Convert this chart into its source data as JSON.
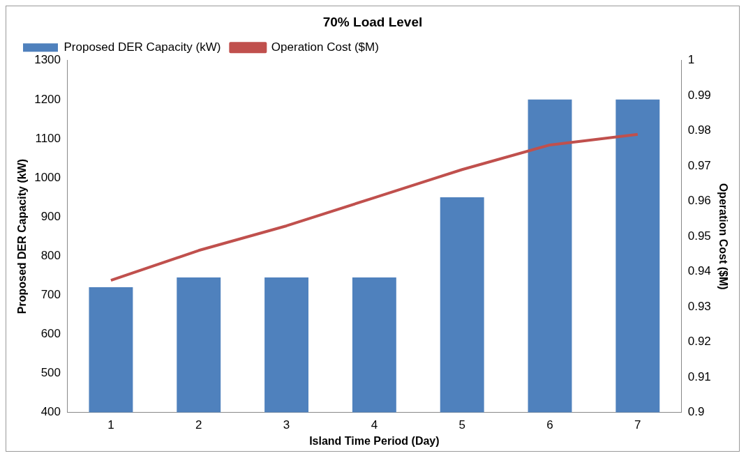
{
  "chart_data": {
    "type": "bar",
    "title": "70% Load Level",
    "xlabel": "Island Time Period (Day)",
    "ylabel": "Proposed DER Capacity (kW)",
    "y2label": "Operation Cost ($M)",
    "categories": [
      "1",
      "2",
      "3",
      "4",
      "5",
      "6",
      "7"
    ],
    "series": [
      {
        "name": "Proposed DER Capacity (kW)",
        "color": "#4f81bd",
        "values": [
          720,
          745,
          745,
          745,
          950,
          1200,
          1200
        ]
      },
      {
        "name": "Operation Cost ($M)",
        "type": "line",
        "axis": "y2",
        "color": "#c0504d",
        "values": [
          0.9375,
          0.946,
          0.953,
          0.961,
          0.969,
          0.976,
          0.979
        ]
      }
    ],
    "ylim": [
      400,
      1300
    ],
    "yticks": [
      400,
      500,
      600,
      700,
      800,
      900,
      1000,
      1100,
      1200,
      1300
    ],
    "y2lim": [
      0.9,
      1
    ],
    "y2ticks": [
      0.9,
      0.91,
      0.92,
      0.93,
      0.94,
      0.95,
      0.96,
      0.97,
      0.98,
      0.99,
      1
    ],
    "grid": false,
    "legend": "top left",
    "marker": "none",
    "line_style": "solid"
  }
}
